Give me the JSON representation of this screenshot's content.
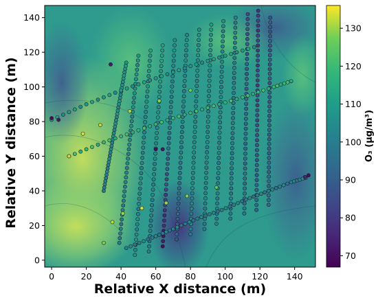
{
  "chart_data": {
    "type": "scatter",
    "title": "",
    "xlabel": "Relative X distance (m)",
    "ylabel": "Relative Y distance (m)",
    "xlim": [
      -4,
      152
    ],
    "ylim": [
      -4,
      147
    ],
    "x_ticks": [
      0,
      20,
      40,
      60,
      80,
      100,
      120,
      140
    ],
    "y_ticks": [
      0,
      20,
      40,
      60,
      80,
      100,
      120,
      140
    ],
    "grid": false,
    "background": "interpolated O3 concentration surface (filled contour) with thin contour lines",
    "colorbar": {
      "label": "O₃ (μg/m³)",
      "colormap": "viridis",
      "range": [
        67,
        136
      ],
      "ticks": [
        70,
        80,
        90,
        100,
        110,
        120,
        130
      ]
    },
    "transects": {
      "description": "UAV lawnmower flight legs; each point colored by measured O3 (μg/m³)",
      "legs": [
        {
          "x_top": 43,
          "y_top": 114,
          "x_bottom": 30,
          "y_bottom": 40,
          "o3_top": 108,
          "o3_mid": 104,
          "o3_bottom": 100
        },
        {
          "x_top": 50,
          "y_top": 118,
          "x_bottom": 39,
          "y_bottom": 10,
          "o3_top": 106,
          "o3_mid": 103,
          "o3_bottom": 99
        },
        {
          "x_top": 57,
          "y_top": 121,
          "x_bottom": 48,
          "y_bottom": 3,
          "o3_top": 110,
          "o3_mid": 101,
          "o3_bottom": 105
        },
        {
          "x_top": 64,
          "y_top": 124,
          "x_bottom": 56,
          "y_bottom": 5,
          "o3_top": 112,
          "o3_mid": 104,
          "o3_bottom": 98
        },
        {
          "x_top": 71,
          "y_top": 127,
          "x_bottom": 64,
          "y_bottom": 8,
          "o3_top": 108,
          "o3_mid": 95,
          "o3_bottom": 70
        },
        {
          "x_top": 78,
          "y_top": 130,
          "x_bottom": 72,
          "y_bottom": 12,
          "o3_top": 105,
          "o3_mid": 100,
          "o3_bottom": 90
        },
        {
          "x_top": 85,
          "y_top": 133,
          "x_bottom": 80,
          "y_bottom": 15,
          "o3_top": 106,
          "o3_mid": 104,
          "o3_bottom": 102
        },
        {
          "x_top": 92,
          "y_top": 136,
          "x_bottom": 88,
          "y_bottom": 18,
          "o3_top": 108,
          "o3_mid": 103,
          "o3_bottom": 100
        },
        {
          "x_top": 99,
          "y_top": 138,
          "x_bottom": 95,
          "y_bottom": 21,
          "o3_top": 104,
          "o3_mid": 102,
          "o3_bottom": 100
        },
        {
          "x_top": 106,
          "y_top": 140,
          "x_bottom": 103,
          "y_bottom": 24,
          "o3_top": 100,
          "o3_mid": 99,
          "o3_bottom": 98
        },
        {
          "x_top": 113,
          "y_top": 142,
          "x_bottom": 111,
          "y_bottom": 27,
          "o3_top": 86,
          "o3_mid": 93,
          "o3_bottom": 96
        },
        {
          "x_top": 119,
          "y_top": 144,
          "x_bottom": 118,
          "y_bottom": 29,
          "o3_top": 80,
          "o3_mid": 85,
          "o3_bottom": 92
        },
        {
          "x_top": 126,
          "y_top": 140,
          "x_bottom": 125,
          "y_bottom": 32,
          "o3_top": 88,
          "o3_mid": 90,
          "o3_bottom": 95
        }
      ]
    },
    "cross_lines": [
      {
        "x": [
          43,
          58,
          70,
          84,
          98,
          112,
          125,
          138,
          148
        ],
        "y": [
          7,
          13,
          18,
          24,
          29,
          35,
          40,
          45,
          48
        ],
        "o3": 100
      },
      {
        "x": [
          10,
          30,
          50,
          70,
          90,
          110,
          128,
          140
        ],
        "y": [
          60,
          68,
          75,
          82,
          88,
          94,
          100,
          104
        ],
        "o3": 118
      },
      {
        "x": [
          0,
          20,
          40,
          60,
          80,
          100,
          120
        ],
        "y": [
          81,
          90,
          98,
          105,
          112,
          118,
          124
        ],
        "o3": 108
      }
    ],
    "hot_points": [
      {
        "x": 35,
        "y": 22,
        "o3": 132
      },
      {
        "x": 41,
        "y": 27,
        "o3": 130
      },
      {
        "x": 52,
        "y": 30,
        "o3": 134
      },
      {
        "x": 66,
        "y": 33,
        "o3": 130
      },
      {
        "x": 78,
        "y": 37,
        "o3": 128
      },
      {
        "x": 95,
        "y": 42,
        "o3": 125
      },
      {
        "x": 10,
        "y": 60,
        "o3": 133
      },
      {
        "x": 18,
        "y": 73,
        "o3": 134
      },
      {
        "x": 28,
        "y": 78,
        "o3": 132
      },
      {
        "x": 45,
        "y": 86,
        "o3": 131
      },
      {
        "x": 62,
        "y": 92,
        "o3": 129
      },
      {
        "x": 80,
        "y": 98,
        "o3": 127
      },
      {
        "x": 30,
        "y": 10,
        "o3": 128
      }
    ],
    "stray_points": [
      {
        "x": 0,
        "y": 82,
        "o3": 70
      },
      {
        "x": 4,
        "y": 81,
        "o3": 72
      },
      {
        "x": 34,
        "y": 113,
        "o3": 72
      },
      {
        "x": 60,
        "y": 64,
        "o3": 70
      },
      {
        "x": 64,
        "y": 64,
        "o3": 72
      },
      {
        "x": 148,
        "y": 49,
        "o3": 70
      },
      {
        "x": 146,
        "y": 48,
        "o3": 75
      }
    ]
  }
}
